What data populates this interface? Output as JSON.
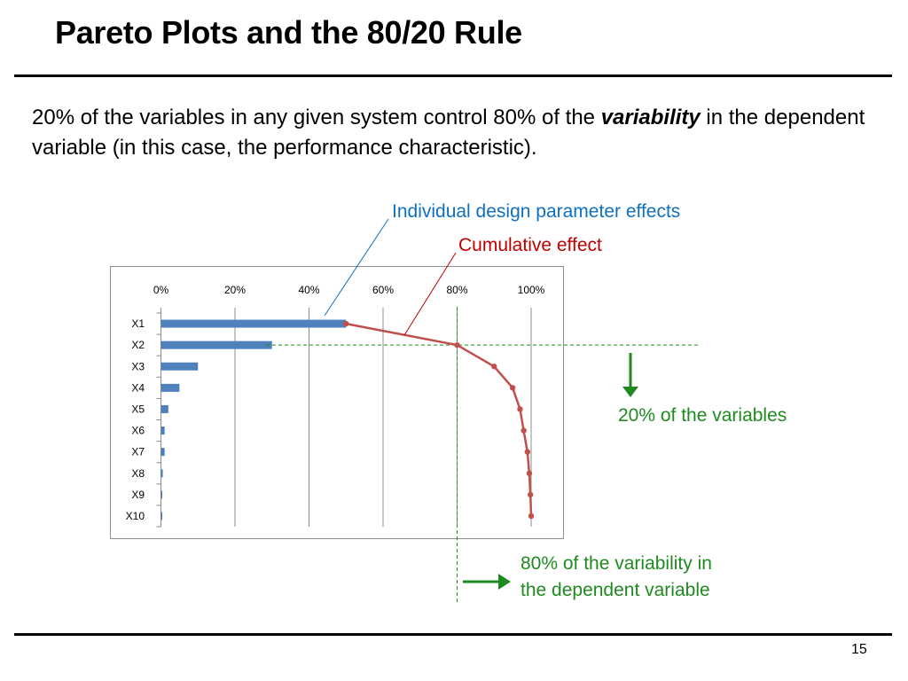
{
  "slide": {
    "title": "Pareto Plots and the 80/20 Rule",
    "body_part1": "20% of the variables in any given system control 80% of the ",
    "body_emphasis": "variability",
    "body_part2": " in the dependent variable (in this case, the performance characteristic).",
    "page_number": "15"
  },
  "annotations": {
    "individual": "Individual design parameter effects",
    "cumulative": "Cumulative effect",
    "twenty_percent": "20% of the variables",
    "eighty_line1": "80% of the variability in",
    "eighty_line2": "the dependent variable"
  },
  "colors": {
    "bar": "#4f81bd",
    "cumulative_line": "#c0504d",
    "guide": "#1f8a1f",
    "blue_label": "#0f70c0",
    "red_label": "#c00000"
  },
  "chart_data": {
    "type": "bar",
    "orientation": "horizontal",
    "categories": [
      "X1",
      "X2",
      "X3",
      "X4",
      "X5",
      "X6",
      "X7",
      "X8",
      "X9",
      "X10"
    ],
    "series": [
      {
        "values": [
          50,
          30,
          10,
          5,
          2,
          1,
          1,
          0.5,
          0.3,
          0.2
        ]
      },
      {
        "type": "line",
        "values": [
          50,
          80,
          90,
          95,
          97,
          98,
          99,
          99.5,
          99.8,
          100
        ]
      }
    ],
    "x_ticks": [
      "0%",
      "20%",
      "40%",
      "60%",
      "80%",
      "100%"
    ],
    "xlim": [
      0,
      100
    ],
    "x_axis_position": "top",
    "grid": true,
    "xlabel": "",
    "ylabel": ""
  }
}
